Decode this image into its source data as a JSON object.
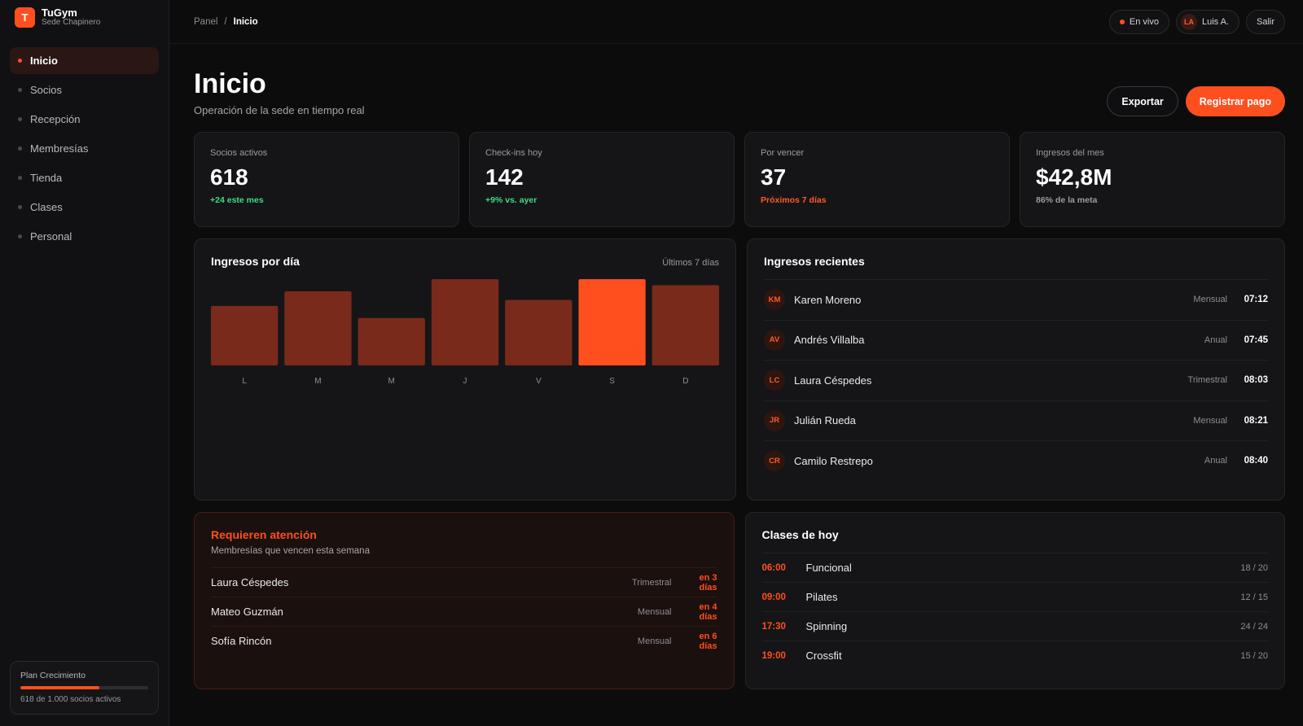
{
  "brand": {
    "logo": "T",
    "name": "TuGym",
    "location": "Sede Chapinero"
  },
  "nav": [
    {
      "label": "Inicio",
      "active": true
    },
    {
      "label": "Socios"
    },
    {
      "label": "Recepción"
    },
    {
      "label": "Membresías"
    },
    {
      "label": "Tienda"
    },
    {
      "label": "Clases"
    },
    {
      "label": "Personal"
    }
  ],
  "plan": {
    "title": "Plan Crecimiento",
    "progress_pct": 61.8,
    "text": "618 de 1.000 socios activos"
  },
  "breadcrumb": {
    "root": "Panel",
    "sep": "/",
    "current": "Inicio"
  },
  "topbar": {
    "live": "En vivo",
    "user_initials": "LA",
    "user_name": "Luis A.",
    "logout": "Salir"
  },
  "page": {
    "title": "Inicio",
    "subtitle": "Operación de la sede en tiempo real",
    "export": "Exportar",
    "register": "Registrar pago"
  },
  "kpis": [
    {
      "label": "Socios activos",
      "value": "618",
      "delta": "+24 este mes",
      "color": "#3ddc84"
    },
    {
      "label": "Check-ins hoy",
      "value": "142",
      "delta": "+9% vs. ayer",
      "color": "#3ddc84"
    },
    {
      "label": "Por vencer",
      "value": "37",
      "delta": "Próximos 7 días",
      "color": "#ff5a2a"
    },
    {
      "label": "Ingresos del mes",
      "value": "$42,8M",
      "delta": "86% de la meta",
      "color": "#9c9ca1"
    }
  ],
  "revenue_card": {
    "title": "Ingresos por día",
    "note": "Últimos 7 días"
  },
  "chart_data": {
    "type": "bar",
    "categories": [
      "L",
      "M",
      "M",
      "J",
      "V",
      "S",
      "D"
    ],
    "values": [
      69,
      86,
      55,
      100,
      76,
      100,
      93
    ],
    "highlight_index": 5,
    "bar_color": "#7a2a1a",
    "highlight_color": "#ff4f1f",
    "ylim": [
      0,
      100
    ]
  },
  "recent": {
    "title": "Ingresos recientes",
    "rows": [
      {
        "initials": "KM",
        "name": "Karen Moreno",
        "plan": "Mensual",
        "time": "07:12"
      },
      {
        "initials": "AV",
        "name": "Andrés Villalba",
        "plan": "Anual",
        "time": "07:45"
      },
      {
        "initials": "LC",
        "name": "Laura Céspedes",
        "plan": "Trimestral",
        "time": "08:03"
      },
      {
        "initials": "JR",
        "name": "Julián Rueda",
        "plan": "Mensual",
        "time": "08:21"
      },
      {
        "initials": "CR",
        "name": "Camilo Restrepo",
        "plan": "Anual",
        "time": "08:40"
      }
    ]
  },
  "attention": {
    "title": "Requieren atención",
    "subtitle": "Membresías que vencen esta semana",
    "rows": [
      {
        "name": "Laura Céspedes",
        "plan": "Trimestral",
        "due": "en 3 días"
      },
      {
        "name": "Mateo Guzmán",
        "plan": "Mensual",
        "due": "en 4 días"
      },
      {
        "name": "Sofía Rincón",
        "plan": "Mensual",
        "due": "en 6 días"
      }
    ]
  },
  "classes": {
    "title": "Clases de hoy",
    "rows": [
      {
        "time": "06:00",
        "name": "Funcional",
        "cap": "18 / 20"
      },
      {
        "time": "09:00",
        "name": "Pilates",
        "cap": "12 / 15"
      },
      {
        "time": "17:30",
        "name": "Spinning",
        "cap": "24 / 24"
      },
      {
        "time": "19:00",
        "name": "Crossfit",
        "cap": "15 / 20"
      }
    ]
  }
}
